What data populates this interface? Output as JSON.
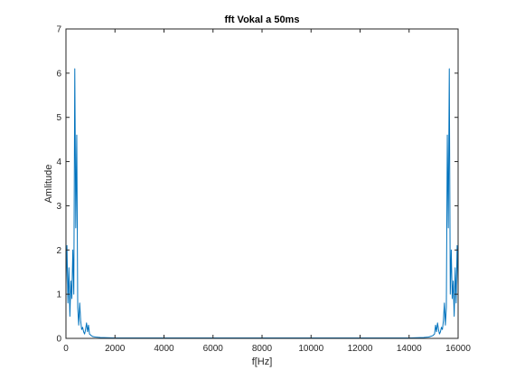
{
  "chart_data": {
    "type": "line",
    "title": "fft Vokal a 50ms",
    "xlabel": "f[Hz]",
    "ylabel": "Amlitude",
    "xlim": [
      0,
      16000
    ],
    "ylim": [
      0,
      7
    ],
    "xticks": [
      0,
      2000,
      4000,
      6000,
      8000,
      10000,
      12000,
      14000,
      16000
    ],
    "yticks": [
      0,
      1,
      2,
      3,
      4,
      5,
      6,
      7
    ],
    "grid": false,
    "line_color": "#0072bd",
    "series": [
      {
        "name": "fft",
        "x": [
          0,
          40,
          80,
          120,
          160,
          200,
          240,
          280,
          320,
          360,
          400,
          440,
          480,
          520,
          560,
          600,
          640,
          680,
          720,
          760,
          800,
          840,
          880,
          920,
          960,
          1000,
          1040,
          1100,
          1200,
          1400,
          2000,
          4000,
          6000,
          8000,
          10000,
          12000,
          14000,
          14600,
          14800,
          14960,
          15000,
          15040,
          15080,
          15120,
          15160,
          15200,
          15240,
          15280,
          15320,
          15360,
          15400,
          15440,
          15480,
          15520,
          15560,
          15600,
          15640,
          15680,
          15720,
          15760,
          15800,
          15840,
          15880,
          15920,
          15960,
          16000
        ],
        "y": [
          1.2,
          2.1,
          0.8,
          1.6,
          0.5,
          1.3,
          0.9,
          2.0,
          1.0,
          6.1,
          2.5,
          4.6,
          0.7,
          0.3,
          0.8,
          0.4,
          0.2,
          0.25,
          0.15,
          0.1,
          0.2,
          0.35,
          0.15,
          0.3,
          0.1,
          0.08,
          0.06,
          0.04,
          0.03,
          0.02,
          0.01,
          0.01,
          0.01,
          0.01,
          0.01,
          0.01,
          0.01,
          0.02,
          0.03,
          0.06,
          0.08,
          0.1,
          0.3,
          0.15,
          0.35,
          0.2,
          0.1,
          0.15,
          0.25,
          0.2,
          0.4,
          0.8,
          0.3,
          0.7,
          4.6,
          2.5,
          6.1,
          1.0,
          2.0,
          0.9,
          1.3,
          0.5,
          1.6,
          0.8,
          2.1,
          1.2
        ]
      }
    ]
  }
}
